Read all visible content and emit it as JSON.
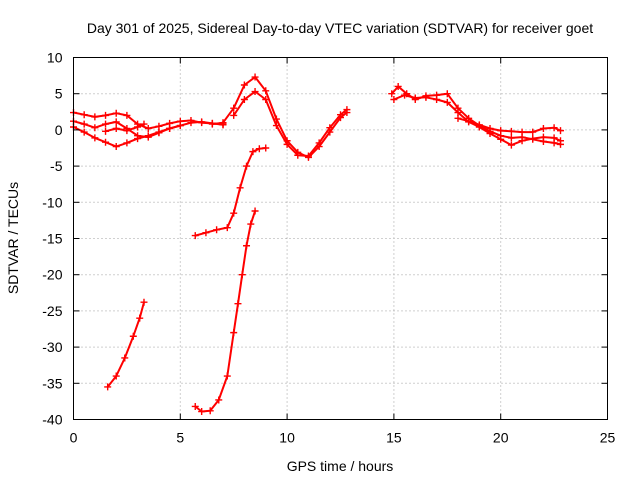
{
  "chart_data": {
    "type": "scatter",
    "title": "Day 301 of 2025, Sidereal Day-to-day VTEC variation (SDTVAR) for receiver goet",
    "xlabel": "GPS time / hours",
    "ylabel": "SDTVAR / TECUs",
    "xlim": [
      0,
      25
    ],
    "ylim": [
      -40,
      10
    ],
    "xticks": [
      0,
      5,
      10,
      15,
      20,
      25
    ],
    "yticks": [
      10,
      5,
      0,
      -5,
      -10,
      -15,
      -20,
      -25,
      -30,
      -35,
      -40
    ],
    "grid": true,
    "legend": "none",
    "marker": "plus",
    "color": "#ff0000",
    "series": [
      {
        "name": "s1",
        "x": [
          0.0,
          0.5,
          1.0,
          1.5,
          2.0,
          2.5,
          3.0,
          3.5,
          4.0,
          4.5,
          5.0,
          5.5,
          6.0,
          6.5,
          7.0
        ],
        "y": [
          2.4,
          2.1,
          1.8,
          2.0,
          2.3,
          2.0,
          0.8,
          0.2,
          0.5,
          0.9,
          1.2,
          1.3,
          1.0,
          0.9,
          0.7
        ]
      },
      {
        "name": "s2",
        "x": [
          0.0,
          0.5,
          1.0,
          1.5,
          2.0,
          2.5,
          3.0,
          3.5,
          4.0,
          4.5,
          5.0,
          5.5,
          6.0,
          6.5,
          7.0
        ],
        "y": [
          1.2,
          0.8,
          0.3,
          0.8,
          1.1,
          0.2,
          -0.8,
          -1.0,
          -0.4,
          0.2,
          0.6,
          1.0,
          1.1,
          0.9,
          0.8
        ]
      },
      {
        "name": "s3",
        "x": [
          0.0,
          0.5,
          1.0,
          1.5,
          2.0,
          2.5,
          3.0,
          3.5,
          4.0,
          4.5,
          5.0
        ],
        "y": [
          0.4,
          -0.3,
          -1.1,
          -1.7,
          -2.3,
          -1.8,
          -1.2,
          -0.8,
          -0.3,
          0.2,
          0.6
        ]
      },
      {
        "name": "s4",
        "x": [
          1.5,
          2.0,
          2.5,
          3.0,
          3.3
        ],
        "y": [
          -0.2,
          0.2,
          -0.1,
          0.4,
          0.8
        ]
      },
      {
        "name": "s5",
        "x": [
          6.5,
          7.0,
          7.5,
          8.0,
          8.5,
          9.0,
          9.5,
          10.0,
          10.5,
          11.0,
          11.5,
          12.0,
          12.5,
          12.8
        ],
        "y": [
          0.8,
          1.0,
          3.0,
          6.2,
          7.3,
          5.4,
          1.5,
          -1.5,
          -3.1,
          -3.8,
          -2.3,
          -0.3,
          1.7,
          2.4
        ]
      },
      {
        "name": "s6",
        "x": [
          7.5,
          8.0,
          8.5,
          9.0,
          9.5,
          10.0,
          10.5,
          11.0,
          11.5,
          12.0,
          12.5,
          12.8
        ],
        "y": [
          2.0,
          4.2,
          5.3,
          4.2,
          0.6,
          -2.0,
          -3.5,
          -3.6,
          -1.8,
          0.3,
          2.1,
          2.8
        ]
      },
      {
        "name": "s7",
        "x": [
          5.7,
          6.2,
          6.7,
          7.2,
          7.5,
          7.8,
          8.1,
          8.4,
          8.7,
          9.0
        ],
        "y": [
          -14.6,
          -14.2,
          -13.8,
          -13.5,
          -11.5,
          -8.0,
          -5.0,
          -3.0,
          -2.6,
          -2.5
        ]
      },
      {
        "name": "s8",
        "x": [
          5.7,
          6.0,
          6.4,
          6.8,
          7.2,
          7.5,
          7.7,
          7.9,
          8.1,
          8.3,
          8.5
        ],
        "y": [
          -38.2,
          -38.9,
          -38.8,
          -37.3,
          -34.0,
          -28.0,
          -24.0,
          -20.0,
          -16.0,
          -13.0,
          -11.2
        ]
      },
      {
        "name": "s9",
        "x": [
          1.6,
          2.0,
          2.4,
          2.8,
          3.1,
          3.3
        ],
        "y": [
          -35.5,
          -34.0,
          -31.5,
          -28.5,
          -26.0,
          -23.8
        ]
      },
      {
        "name": "s10",
        "x": [
          14.9,
          15.2,
          15.6,
          16.0,
          16.5,
          17.0,
          17.5,
          18.0,
          18.5,
          19.0,
          19.5,
          20.0,
          20.5,
          21.0,
          21.5,
          22.0,
          22.5,
          22.8
        ],
        "y": [
          5.0,
          6.0,
          5.0,
          4.2,
          4.7,
          4.8,
          5.0,
          3.0,
          1.6,
          0.6,
          -0.2,
          -0.8,
          -1.1,
          -1.0,
          -1.3,
          -1.6,
          -1.8,
          -2.0
        ]
      },
      {
        "name": "s11",
        "x": [
          15.0,
          15.5,
          16.0,
          16.5,
          17.0,
          17.5,
          18.0,
          18.5,
          19.0,
          19.5,
          20.0,
          20.5,
          21.0,
          21.5,
          22.0,
          22.5,
          22.8
        ],
        "y": [
          4.2,
          4.8,
          4.4,
          4.5,
          4.2,
          3.8,
          2.4,
          1.1,
          0.4,
          -0.5,
          -1.3,
          -2.1,
          -1.5,
          -1.2,
          -1.0,
          -1.1,
          -1.5
        ]
      },
      {
        "name": "s12",
        "x": [
          18.0,
          18.5,
          19.0,
          19.5,
          20.0,
          20.5,
          21.0,
          21.5,
          22.0,
          22.5,
          22.8
        ],
        "y": [
          1.6,
          1.2,
          0.7,
          0.2,
          -0.1,
          -0.2,
          -0.3,
          -0.3,
          0.2,
          0.3,
          -0.1
        ]
      }
    ]
  }
}
